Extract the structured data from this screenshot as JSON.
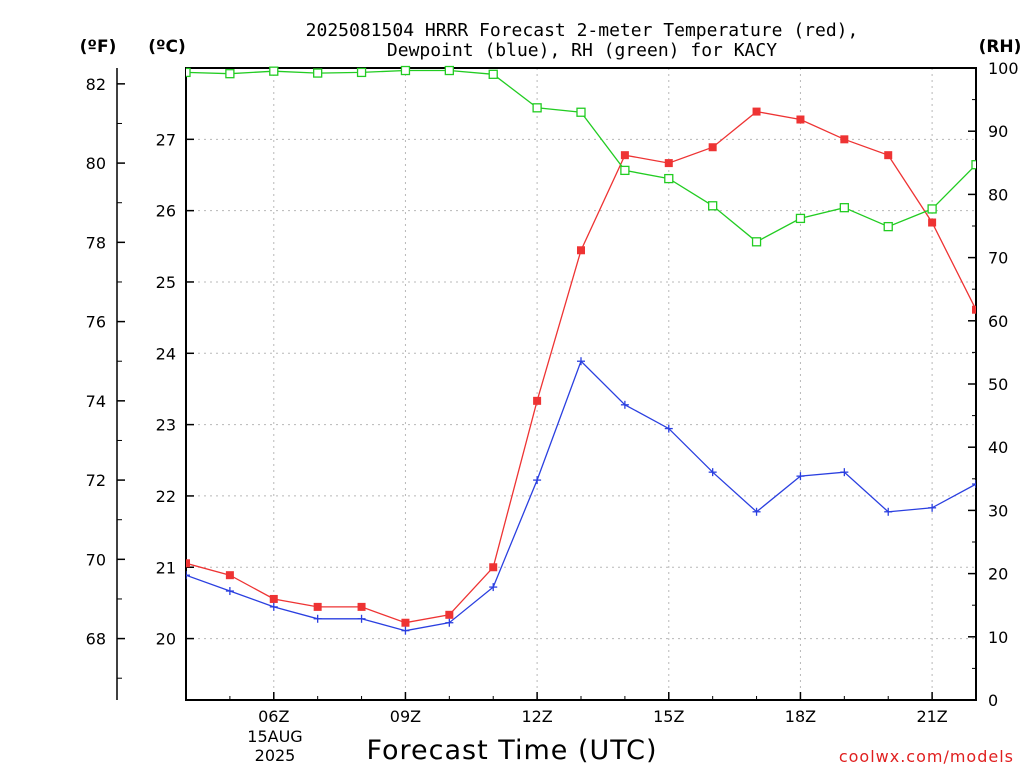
{
  "chart_data": {
    "type": "line",
    "title_lines": [
      "2025081504 HRRR Forecast 2-meter Temperature (red),",
      "Dewpoint (blue), RH (green) for KACY"
    ],
    "left_f_unit": "(ºF)",
    "left_c_unit": "(ºC)",
    "right_unit": "(RH)",
    "xlabel": "Forecast Time (UTC)",
    "credit": "coolwx.com/models",
    "x_hours": [
      4,
      5,
      6,
      7,
      8,
      9,
      10,
      11,
      12,
      13,
      14,
      15,
      16,
      17,
      18,
      19,
      20,
      21,
      22
    ],
    "x_range": [
      4,
      22
    ],
    "x_ticks": [
      {
        "hour": 6,
        "label": "06Z"
      },
      {
        "hour": 9,
        "label": "09Z"
      },
      {
        "hour": 12,
        "label": "12Z"
      },
      {
        "hour": 15,
        "label": "15Z"
      },
      {
        "hour": 18,
        "label": "18Z"
      },
      {
        "hour": 21,
        "label": "21Z"
      }
    ],
    "date_label": [
      "15AUG",
      "2025"
    ],
    "temp_axis": {
      "unit": "F",
      "range": [
        66.45,
        82.4
      ],
      "ticks": [
        "68",
        "70",
        "72",
        "74",
        "76",
        "78",
        "80",
        "82"
      ]
    },
    "celsius_axis": {
      "ticks": [
        "20",
        "21",
        "22",
        "23",
        "24",
        "25",
        "26",
        "27"
      ]
    },
    "rh_axis": {
      "range": [
        0,
        100
      ],
      "ticks": [
        "0",
        "10",
        "20",
        "30",
        "40",
        "50",
        "60",
        "70",
        "80",
        "90",
        "100"
      ]
    },
    "series": [
      {
        "name": "Temperature",
        "axis": "temp",
        "color": "#ee3333",
        "marker": "filled-square",
        "values": [
          69.9,
          69.6,
          69.0,
          68.8,
          68.8,
          68.4,
          68.6,
          69.8,
          74.0,
          77.8,
          80.2,
          80.0,
          80.4,
          81.3,
          81.1,
          80.6,
          80.2,
          78.5,
          76.3
        ]
      },
      {
        "name": "Dewpoint",
        "axis": "temp",
        "color": "#2a3fe0",
        "marker": "plus",
        "values": [
          69.6,
          69.2,
          68.8,
          68.5,
          68.5,
          68.2,
          68.4,
          69.3,
          72.0,
          75.0,
          73.9,
          73.3,
          72.2,
          71.2,
          72.1,
          72.2,
          71.2,
          71.3,
          71.9
        ]
      },
      {
        "name": "RH",
        "axis": "rh",
        "color": "#22cc22",
        "marker": "open-square",
        "values": [
          99.3,
          99.1,
          99.5,
          99.2,
          99.3,
          99.6,
          99.6,
          99.0,
          93.7,
          93.0,
          83.8,
          82.5,
          78.2,
          72.5,
          76.2,
          77.9,
          74.9,
          77.7,
          84.7
        ]
      }
    ]
  }
}
